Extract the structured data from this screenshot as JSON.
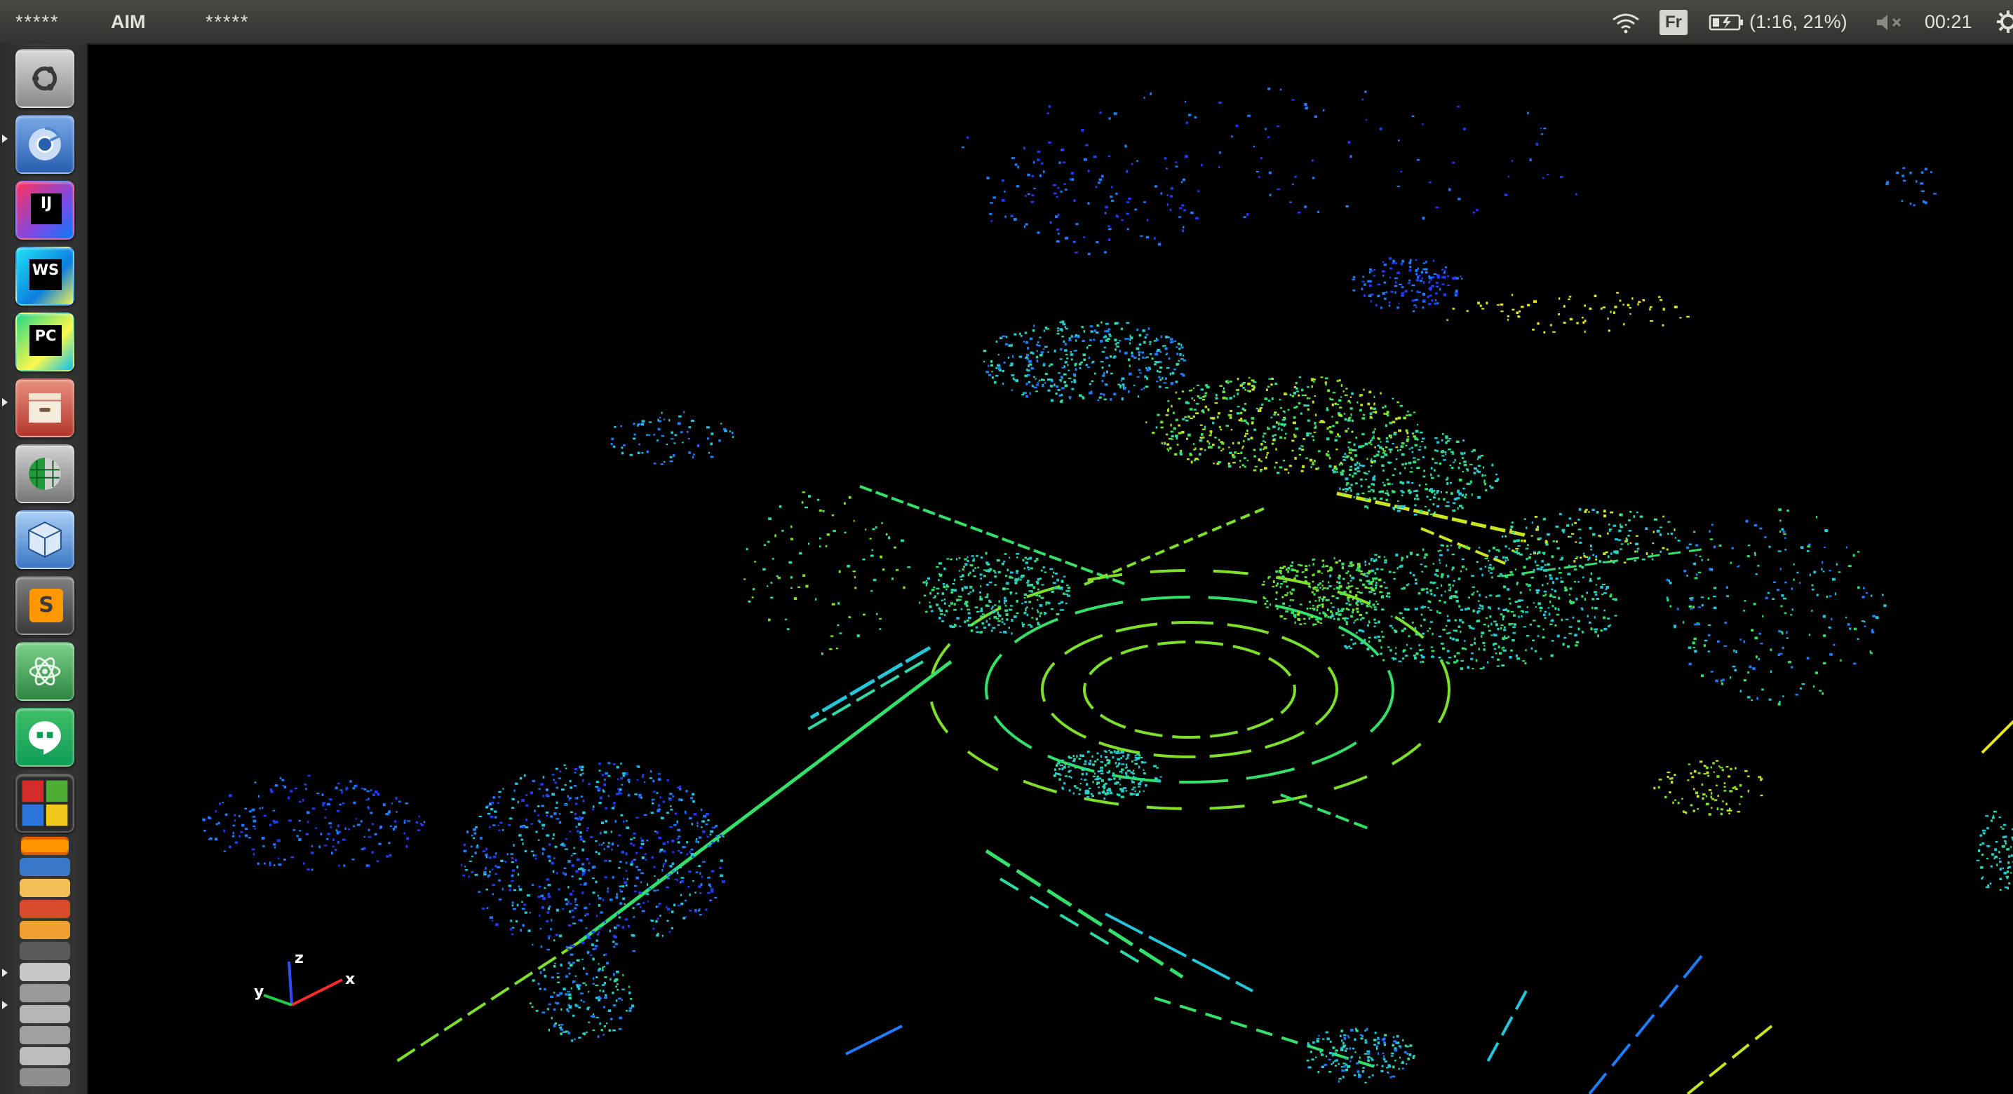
{
  "top_panel": {
    "menu_left": "*****",
    "app_title": "AIM",
    "menu_right": "*****",
    "wifi_icon": "wifi-icon",
    "keyboard_layout": "Fr",
    "battery_icon": "battery-charging-icon",
    "battery_status": "(1:16, 21%)",
    "volume_icon": "volume-muted-icon",
    "clock": "00:21",
    "session_icon": "gear-icon"
  },
  "launcher": {
    "items": [
      {
        "name": "ubuntu-dash",
        "icon": "ubuntu-logo-icon",
        "colors": [
          "#d0d0d0",
          "#8f8f8f"
        ],
        "running": false
      },
      {
        "name": "chromium",
        "icon": "chromium-icon",
        "colors": [
          "#6d9ee0",
          "#2f64b4"
        ],
        "running": true
      },
      {
        "name": "intellij-idea",
        "icon": "intellij-icon",
        "label": "IJ",
        "colors": [
          "#fe315d",
          "#7c49e6"
        ],
        "running": false
      },
      {
        "name": "webstorm",
        "icon": "webstorm-icon",
        "label": "WS",
        "colors": [
          "#20c1f5",
          "#0b7fe0"
        ],
        "running": false
      },
      {
        "name": "pycharm",
        "icon": "pycharm-icon",
        "label": "PC",
        "colors": [
          "#21d789",
          "#fcf84a"
        ],
        "running": false
      },
      {
        "name": "file-archiver",
        "icon": "archive-icon",
        "colors": [
          "#e88a7b",
          "#b23a2c"
        ],
        "running": true
      },
      {
        "name": "globe-app",
        "icon": "globe-icon",
        "colors": [
          "#cfcfcf",
          "#7a7a7a"
        ],
        "running": false
      },
      {
        "name": "virtualbox",
        "icon": "cube-icon",
        "colors": [
          "#9ec7f2",
          "#3e79c8"
        ],
        "running": false
      },
      {
        "name": "sublime-text",
        "icon": "sublime-icon",
        "label": "S",
        "colors": [
          "#7a7a7a",
          "#3a3a3a"
        ],
        "running": false
      },
      {
        "name": "atom",
        "icon": "atom-icon",
        "colors": [
          "#6ec77a",
          "#2f8a44"
        ],
        "running": false
      },
      {
        "name": "hangouts",
        "icon": "hangouts-icon",
        "colors": [
          "#39b55e",
          "#0f9d58"
        ],
        "running": false
      },
      {
        "name": "workspace-switcher",
        "icon": "workspaces-icon",
        "colors": [
          "#d62a2a",
          "#2b74d9"
        ],
        "running": false
      }
    ],
    "stack_icons": [
      "firefox-icon",
      "document-icon",
      "edit-icon",
      "notes-icon",
      "trash-icon"
    ]
  },
  "viewport": {
    "background": "#000000",
    "axes": {
      "z": "z",
      "x": "x",
      "y": "y"
    },
    "palette": [
      "#1f3bff",
      "#1f7dff",
      "#26c6da",
      "#2fd9a8",
      "#35e06a",
      "#7fe02c",
      "#c8e61f",
      "#e6e61a",
      "#ff3030"
    ]
  }
}
